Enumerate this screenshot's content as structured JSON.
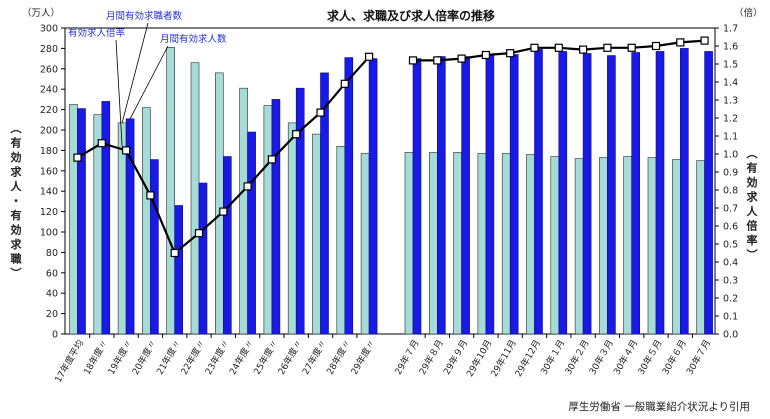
{
  "chart_data": {
    "type": "bar+line",
    "title": "求人、求職及び求人倍率の推移",
    "left_unit": "（万人）",
    "right_unit": "（倍）",
    "left_axis_label": "（有効求人・有効求職）",
    "right_axis_label": "（有効求人倍率）",
    "ylim_left": [
      0,
      300
    ],
    "ylim_right": [
      0,
      1.7
    ],
    "left_ticks": [
      0,
      20,
      40,
      60,
      80,
      100,
      120,
      140,
      160,
      180,
      200,
      220,
      240,
      260,
      280,
      300
    ],
    "right_ticks": [
      "0.0",
      "0.1",
      "0.2",
      "0.3",
      "0.4",
      "0.5",
      "0.6",
      "0.7",
      "0.8",
      "0.9",
      "1.0",
      "1.1",
      "1.2",
      "1.3",
      "1.4",
      "1.5",
      "1.6",
      "1.7"
    ],
    "categories_annual": [
      "17年度平均",
      "18年度〃",
      "19年度〃",
      "20年度〃",
      "21年度〃",
      "22年度〃",
      "23年度〃",
      "24年度〃",
      "25年度〃",
      "26年度〃",
      "27年度〃",
      "28年度〃",
      "29年度〃"
    ],
    "categories_monthly": [
      "29年７月",
      "29年８月",
      "29年９月",
      "29年10月",
      "29年11月",
      "29年12月",
      "30年１月",
      "30年２月",
      "30年３月",
      "30年４月",
      "30年５月",
      "30年６月",
      "30年７月"
    ],
    "series": [
      {
        "name": "月間有効求職者数",
        "color": "#a6dcd8",
        "annual": [
          225,
          215,
          207,
          222,
          281,
          266,
          256,
          241,
          224,
          207,
          196,
          184,
          177
        ],
        "monthly": [
          178,
          178,
          178,
          177,
          177,
          176,
          174,
          172,
          173,
          174,
          173,
          171,
          170
        ]
      },
      {
        "name": "月間有効求人数",
        "color": "#1a1ae6",
        "annual": [
          221,
          228,
          211,
          171,
          126,
          148,
          174,
          198,
          230,
          241,
          256,
          271,
          270
        ],
        "monthly": [
          270,
          272,
          272,
          273,
          274,
          279,
          277,
          275,
          273,
          276,
          277,
          280,
          277
        ]
      },
      {
        "name": "有効求人倍率",
        "color": "#000000",
        "annual": [
          0.98,
          1.06,
          1.02,
          0.77,
          0.45,
          0.56,
          0.68,
          0.82,
          0.97,
          1.11,
          1.23,
          1.39,
          1.54
        ],
        "monthly": [
          1.52,
          1.52,
          1.53,
          1.55,
          1.56,
          1.59,
          1.59,
          1.58,
          1.59,
          1.59,
          1.6,
          1.62,
          1.63
        ]
      }
    ],
    "source": "厚生労働省 一般職業紹介状況より引用"
  }
}
